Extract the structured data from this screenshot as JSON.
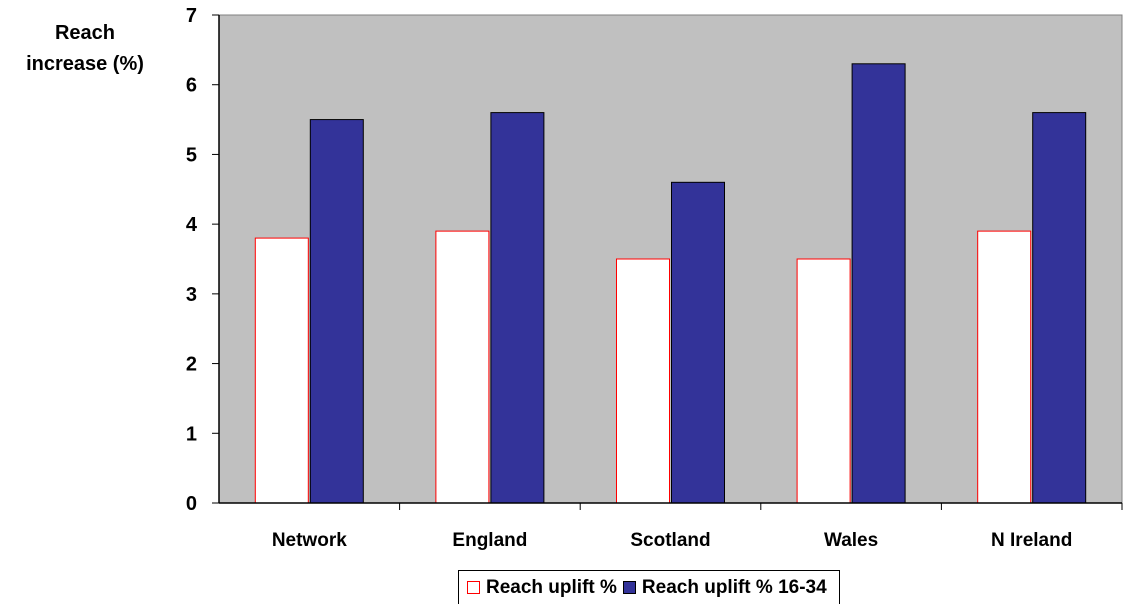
{
  "chart_data": {
    "type": "bar",
    "title": "",
    "xlabel": "",
    "ylabel_lines": [
      "Reach",
      "increase (%)"
    ],
    "categories": [
      "Network",
      "England",
      "Scotland",
      "Wales",
      "N Ireland"
    ],
    "series": [
      {
        "name": "Reach uplift %",
        "values": [
          3.8,
          3.9,
          3.5,
          3.5,
          3.9
        ],
        "fill": "#ffffff",
        "stroke": "#ff0000"
      },
      {
        "name": "Reach uplift % 16-34",
        "values": [
          5.5,
          5.6,
          4.6,
          6.3,
          5.6
        ],
        "fill": "#333399",
        "stroke": "#000000"
      }
    ],
    "ylim": [
      0,
      7
    ],
    "yticks": [
      "0",
      "1",
      "2",
      "3",
      "4",
      "5",
      "6",
      "7"
    ],
    "plot_background": "#c0c0c0",
    "grid": false,
    "legend_position": "bottom"
  }
}
